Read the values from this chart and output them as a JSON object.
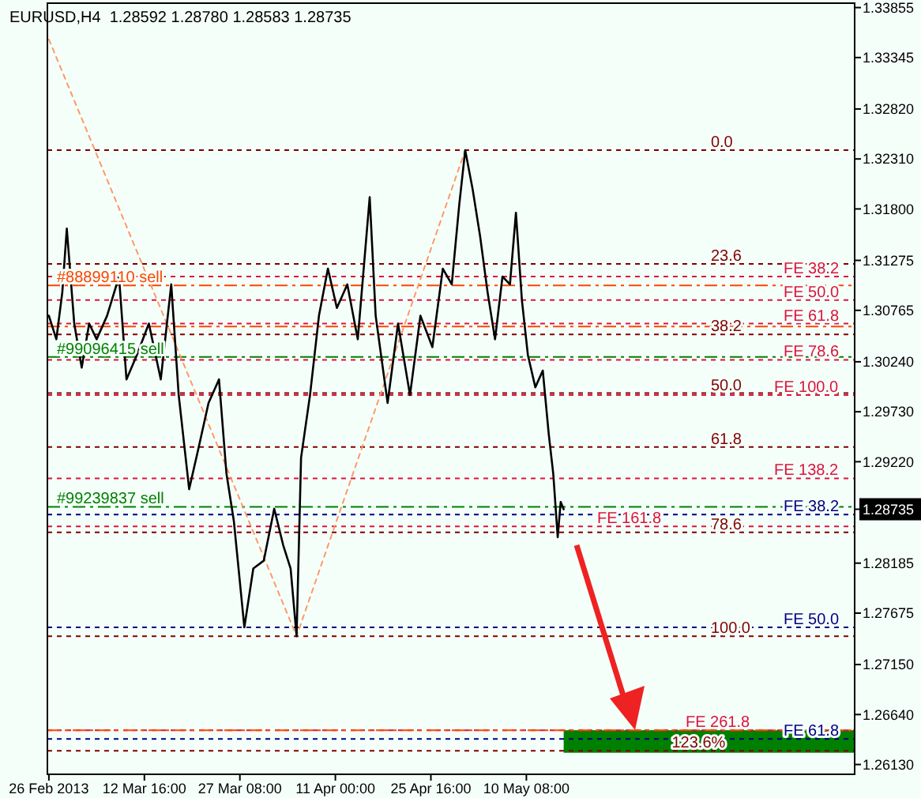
{
  "chart_data": {
    "type": "line",
    "title": "EURUSD,H4  1.28592 1.28780 1.28583 1.28735",
    "xlim": [
      "2013-02-25T18:30",
      "2013-06-29T18:00"
    ],
    "xticks": [
      {
        "value": "2013-02-26T00:00",
        "label": "26 Feb 2013"
      },
      {
        "value": "2013-03-12T16:00",
        "label": "12 Mar 16:00"
      },
      {
        "value": "2013-03-27T08:00",
        "label": "27 Mar 08:00"
      },
      {
        "value": "2013-04-11T00:00",
        "label": "11 Apr 00:00"
      },
      {
        "value": "2013-04-25T16:00",
        "label": "25 Apr 16:00"
      },
      {
        "value": "2013-05-10T08:00",
        "label": "10 May 08:00"
      }
    ],
    "ylim": [
      1.2603,
      1.339
    ],
    "yticks": [
      1.33855,
      1.33345,
      {
        "value": 1.3282,
        "label": "1.32820"
      },
      {
        "value": 1.3231,
        "label": "1.32310"
      },
      {
        "value": 1.318,
        "label": "1.31800"
      },
      1.31275,
      1.30765,
      {
        "value": 1.3024,
        "label": "1.30240"
      },
      {
        "value": 1.2973,
        "label": "1.29730"
      },
      {
        "value": 1.2922,
        "label": "1.29220"
      },
      1.28735,
      1.28185,
      1.27675,
      {
        "value": 1.2715,
        "label": "1.27150"
      },
      {
        "value": 1.2664,
        "label": "1.26640"
      },
      {
        "value": 1.2613,
        "label": "1.26130"
      }
    ],
    "grid": false,
    "series": [
      {
        "color": "#000000",
        "x": [
          "2013-02-26T00:00",
          "2013-02-27T03:30",
          "2013-02-28T01:30",
          "2013-02-28T18:00",
          "2013-03-01T21:30",
          "2013-03-03T01:00",
          "2013-03-04T04:30",
          "2013-03-05T08:00",
          "2013-03-06T22:30",
          "2013-03-08T18:30",
          "2013-03-09T22:00",
          "2013-03-11T12:30",
          "2013-03-13T08:30",
          "2013-03-15T04:30",
          "2013-03-16T19:00",
          "2013-03-17T22:30",
          "2013-03-19T13:00",
          "2013-03-20T22:00",
          "2013-03-22T12:30",
          "2013-03-24T03:00",
          "2013-03-25T06:30",
          "2013-03-26T10:00",
          "2013-03-28T00:30",
          "2013-03-29T09:30",
          "2013-03-31T00:00",
          "2013-04-01T14:30",
          "2013-04-02T23:30",
          "2013-04-04T03:00",
          "2013-04-05T01:00",
          "2013-04-05T17:30",
          "2013-04-07T02:30",
          "2013-04-08T11:30",
          "2013-04-09T20:30",
          "2013-04-11T05:30",
          "2013-04-12T20:00",
          "2013-04-14T10:30",
          "2013-04-16T06:30",
          "2013-04-17T04:30",
          "2013-04-19T00:30",
          "2013-04-20T15:00",
          "2013-04-22T11:00",
          "2013-04-24T01:30",
          "2013-04-25T21:30",
          "2013-04-27T12:00",
          "2013-04-28T21:00",
          "2013-04-30T00:30",
          "2013-04-30T22:30",
          "2013-05-02T02:00",
          "2013-05-03T05:30",
          "2013-05-04T09:00",
          "2013-05-05T12:30",
          "2013-05-06T16:00",
          "2013-05-07T19:30",
          "2013-05-08T17:30",
          "2013-05-09T15:30",
          "2013-05-10T13:30",
          "2013-05-11T17:00",
          "2013-05-12T20:30",
          "2013-05-13T18:30",
          "2013-05-14T11:00",
          "2013-05-15T03:30",
          "2013-05-15T14:30",
          "2013-05-16T01:30"
        ],
        "values": [
          1.3071,
          1.3047,
          1.3095,
          1.316,
          1.3063,
          1.3018,
          1.3063,
          1.3047,
          1.3071,
          1.3111,
          1.3006,
          1.3031,
          1.3063,
          1.3006,
          1.3103,
          1.299,
          1.2894,
          1.2934,
          1.2982,
          1.3006,
          1.291,
          1.2861,
          1.2753,
          1.2813,
          1.2821,
          1.2874,
          1.2837,
          1.2813,
          1.2744,
          1.2926,
          1.299,
          1.3071,
          1.3119,
          1.3079,
          1.3103,
          1.3047,
          1.3192,
          1.3071,
          1.2982,
          1.3063,
          1.299,
          1.3071,
          1.3039,
          1.3119,
          1.3103,
          1.3184,
          1.324,
          1.32,
          1.3152,
          1.3095,
          1.3047,
          1.3111,
          1.3103,
          1.3176,
          1.3087,
          1.3031,
          1.2998,
          1.3015,
          1.295,
          1.291,
          1.2845,
          1.2881,
          1.28735
        ]
      },
      {
        "type": "line",
        "color": "#ff9966",
        "line_style": "dotted",
        "x": [
          "2013-02-26T00:00",
          "2013-04-05T01:00",
          "2013-04-30T22:30"
        ],
        "values": [
          1.3353,
          1.2744,
          1.324
        ]
      }
    ],
    "ref_lines": [
      {
        "axis": "y",
        "value": 1.324,
        "label": null,
        "color": "#800000",
        "line_style": "dotted"
      },
      {
        "axis": "y",
        "value": 1.3124,
        "label": null,
        "color": "#800000",
        "line_style": "dotted"
      },
      {
        "axis": "y",
        "value": 1.3111,
        "label": "FE 38.2",
        "color": "#dc143c",
        "line_style": "dotted"
      },
      {
        "axis": "y",
        "value": 1.3102,
        "label": "#88899110 sell",
        "color": "#ff4500",
        "line_style": "dashed"
      },
      {
        "axis": "y",
        "value": 1.3087,
        "label": "FE 50.0",
        "color": "#dc143c",
        "line_style": "dotted"
      },
      {
        "axis": "y",
        "value": 1.3063,
        "label": "FE 61.8",
        "color": "#dc143c",
        "line_style": "dotted"
      },
      {
        "axis": "y",
        "value": 1.306,
        "label": null,
        "color": "#ff4500",
        "line_style": "dashed"
      },
      {
        "axis": "y",
        "value": 1.3052,
        "label": null,
        "color": "#800000",
        "line_style": "dotted"
      },
      {
        "axis": "y",
        "value": 1.3029,
        "label": "#99096415 sell",
        "color": "#008000",
        "line_style": "dashed"
      },
      {
        "axis": "y",
        "value": 1.3026,
        "label": "FE 78.6",
        "color": "#dc143c",
        "line_style": "dotted"
      },
      {
        "axis": "y",
        "value": 1.2992,
        "label": null,
        "color": "#800000",
        "line_style": "dotted"
      },
      {
        "axis": "y",
        "value": 1.299,
        "label": "FE 100.0",
        "color": "#dc143c",
        "line_style": "dotted"
      },
      {
        "axis": "y",
        "value": 1.2937,
        "label": null,
        "color": "#800000",
        "line_style": "dotted"
      },
      {
        "axis": "y",
        "value": 1.2905,
        "label": "FE 138.2",
        "color": "#dc143c",
        "line_style": "dotted"
      },
      {
        "axis": "y",
        "value": 1.2876,
        "label": "#99239837 sell",
        "color": "#008000",
        "line_style": "dashed"
      },
      {
        "axis": "y",
        "value": 1.2868,
        "label": "FE 38.2",
        "color": "#000080",
        "line_style": "dotted"
      },
      {
        "axis": "y",
        "value": 1.2856,
        "label": "FE 161.8",
        "color": "#dc143c",
        "line_style": "dotted"
      },
      {
        "axis": "y",
        "value": 1.285,
        "label": null,
        "color": "#800000",
        "line_style": "dotted"
      },
      {
        "axis": "y",
        "value": 1.2753,
        "label": "FE 50.0",
        "color": "#000080",
        "line_style": "dotted"
      },
      {
        "axis": "y",
        "value": 1.2744,
        "label": null,
        "color": "#800000",
        "line_style": "dotted"
      },
      {
        "axis": "y",
        "value": 1.2639,
        "label": "FE 61.8",
        "color": "#000080",
        "line_style": "dotted"
      },
      {
        "axis": "y",
        "value": 1.2648,
        "label": "FE 261.8",
        "color": "#dc143c",
        "line_style": "dotted"
      },
      {
        "axis": "y",
        "value": 1.2648,
        "label": null,
        "color": "#ff4500",
        "line_style": "dashed"
      },
      {
        "axis": "y",
        "value": 1.2627,
        "label": null,
        "color": "#800000",
        "line_style": "dotted"
      }
    ],
    "annotations": [
      {
        "text": "0.0",
        "x": "2013-06-07T16:00",
        "y": 1.324
      },
      {
        "text": "23.6",
        "x": "2013-06-07T16:00",
        "y": 1.3124
      },
      {
        "text": "38.2",
        "x": "2013-06-07T16:00",
        "y": 1.3052
      },
      {
        "text": "50.0",
        "x": "2013-06-07T16:00",
        "y": 1.2992
      },
      {
        "text": "61.8",
        "x": "2013-06-07T16:00",
        "y": 1.2937
      },
      {
        "text": "78.6",
        "x": "2013-06-07T16:00",
        "y": 1.285
      },
      {
        "text": "100.0",
        "x": "2013-06-07T16:00",
        "y": 1.2744
      },
      {
        "text": "123.6%",
        "x": "2013-06-01T16:00",
        "y": 1.2627
      }
    ],
    "bands": [
      {
        "axis": "y",
        "from": 1.2625,
        "to": 1.2648,
        "color": "#008000"
      }
    ]
  }
}
